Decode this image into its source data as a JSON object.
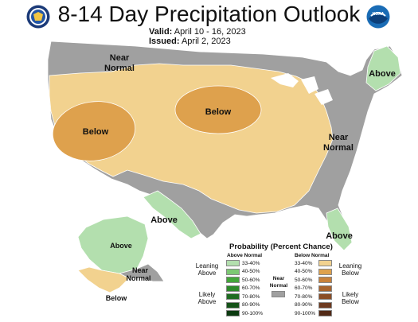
{
  "title": "8-14 Day Precipitation Outlook",
  "valid_label": "Valid:",
  "valid_dates": "April 10 - 16, 2023",
  "issued_label": "Issued:",
  "issued_date": "April 2, 2023",
  "logos": {
    "left": "doc-seal-icon",
    "right": "noaa-logo-icon",
    "right_text": "NOAA"
  },
  "map_labels": {
    "near_normal_nw_line1": "Near",
    "near_normal_nw_line2": "Normal",
    "below_west": "Below",
    "below_central": "Below",
    "near_normal_east_line1": "Near",
    "near_normal_east_line2": "Normal",
    "above_ne": "Above",
    "above_tx": "Above",
    "above_fl": "Above",
    "above_ak": "Above",
    "near_normal_ak_line1": "Near",
    "near_normal_ak_line2": "Normal",
    "below_ak": "Below"
  },
  "legend": {
    "title": "Probability (Percent Chance)",
    "above_header": "Above Normal",
    "below_header": "Below Normal",
    "near_normal_line1": "Near",
    "near_normal_line2": "Normal",
    "leaning_above_1": "Leaning",
    "leaning_above_2": "Above",
    "likely_above_1": "Likely",
    "likely_above_2": "Above",
    "leaning_below_1": "Leaning",
    "leaning_below_2": "Below",
    "likely_below_1": "Likely",
    "likely_below_2": "Below",
    "ranges": [
      "33-40%",
      "40-50%",
      "50-60%",
      "60-70%",
      "70-80%",
      "80-90%",
      "90-100%"
    ],
    "above_colors": [
      "#b3dfae",
      "#7dc874",
      "#43a63a",
      "#2d8a2a",
      "#1e6b20",
      "#145218",
      "#0b3a10"
    ],
    "below_colors": [
      "#f2d28f",
      "#dea14d",
      "#c8813a",
      "#a8642e",
      "#8a4d26",
      "#6e3a1f",
      "#522a16"
    ],
    "near_normal_color": "#a0a0a0"
  },
  "colors": {
    "near_normal": "#a0a0a0",
    "below_33_40": "#f2d28f",
    "below_40_50": "#dea14d",
    "above_33_40": "#b3dfae",
    "outline": "#ffffff"
  }
}
